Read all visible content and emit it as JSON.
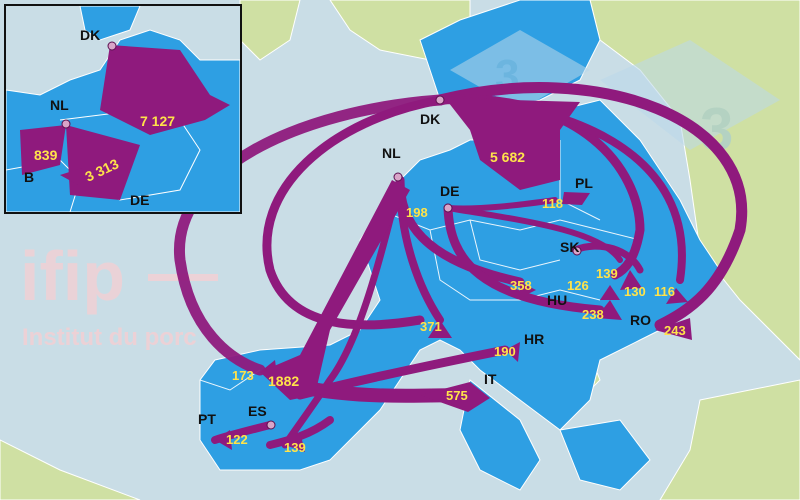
{
  "colors": {
    "sea": "#c9dde6",
    "land_eu": "#2e9fe3",
    "land_other": "#cfe0a3",
    "borders": "#ffffff",
    "flow": "#8f1a7d",
    "flow_label": "#ffe34a",
    "node": "#d9a5c8",
    "watermark": "#f5cfd3"
  },
  "watermark": {
    "brand": "ifip",
    "subtitle": "Institut du porc",
    "logo_text": "3",
    "logo_text2": "3"
  },
  "countries": {
    "dk": "DK",
    "nl": "NL",
    "de": "DE",
    "pl": "PL",
    "sk": "SK",
    "hu": "HU",
    "ro": "RO",
    "hr": "HR",
    "it": "IT",
    "es": "ES",
    "pt": "PT"
  },
  "inset": {
    "dk": "DK",
    "nl": "NL",
    "b": "B",
    "de": "DE",
    "flows": {
      "dk_de": "7 127",
      "nl_de": "3 313",
      "nl_b": "839"
    }
  },
  "flows": {
    "dk_de": "5 682",
    "de_pl": "118",
    "nl_de": "198",
    "nl_hu": "358",
    "nl_sk": "126",
    "dk_sk": "139",
    "dk_ro_a": "130",
    "dk_ro_b": "116",
    "de_ro": "238",
    "dk_ro_c": "243",
    "nl_it": "371",
    "dk_hr": "190",
    "nl_es": "1882",
    "de_it": "575",
    "nl_pt": "173",
    "es_pt": "122",
    "nl_es2": "139"
  }
}
